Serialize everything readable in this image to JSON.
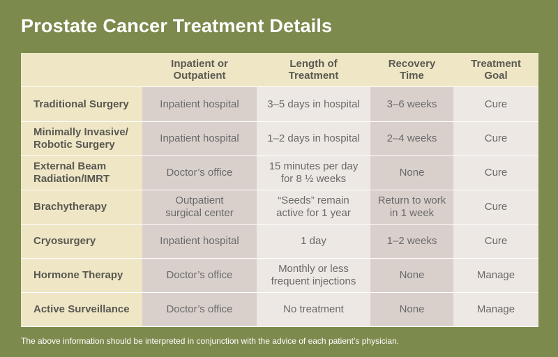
{
  "title": "Prostate Cancer Treatment Details",
  "table": {
    "headers": [
      "",
      "Inpatient or\nOutpatient",
      "Length of\nTreatment",
      "Recovery\nTime",
      "Treatment\nGoal"
    ],
    "rows": [
      {
        "treatment": "Traditional Surgery",
        "setting": "Inpatient hospital",
        "length": "3–5 days in hospital",
        "recovery": "3–6 weeks",
        "goal": "Cure"
      },
      {
        "treatment": "Minimally Invasive/\nRobotic Surgery",
        "setting": "Inpatient hospital",
        "length": "1–2 days in hospital",
        "recovery": "2–4 weeks",
        "goal": "Cure"
      },
      {
        "treatment": "External Beam\nRadiation/IMRT",
        "setting": "Doctor’s office",
        "length": "15 minutes per day\nfor 8 ½ weeks",
        "recovery": "None",
        "goal": "Cure"
      },
      {
        "treatment": "Brachytherapy",
        "setting": "Outpatient\nsurgical center",
        "length": "“Seeds” remain\nactive for 1 year",
        "recovery": "Return to work\nin 1 week",
        "goal": "Cure"
      },
      {
        "treatment": "Cryosurgery",
        "setting": "Inpatient hospital",
        "length": "1 day",
        "recovery": "1–2 weeks",
        "goal": "Cure"
      },
      {
        "treatment": "Hormone Therapy",
        "setting": "Doctor’s office",
        "length": "Monthly or less\nfrequent injections",
        "recovery": "None",
        "goal": "Manage"
      },
      {
        "treatment": "Active Surveillance",
        "setting": "Doctor’s office",
        "length": "No treatment",
        "recovery": "None",
        "goal": "Manage"
      }
    ]
  },
  "footnote": "The above information should be interpreted in conjunction with the advice of each patient’s physician.",
  "colors": {
    "background": "#7d8a4e",
    "header_fill": "#efe6c6",
    "shaded_column": "#d9d0cc",
    "light_column": "#ede8e3"
  }
}
